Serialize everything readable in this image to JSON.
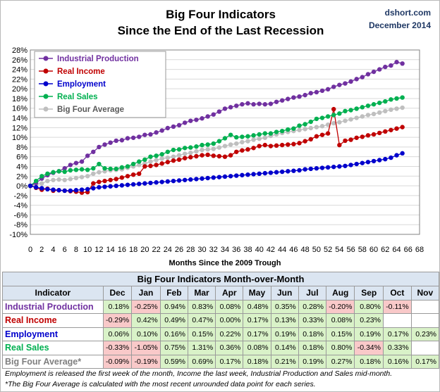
{
  "header": {
    "title_line1": "Big Four Indicators",
    "title_line2": "Since the End of the Last Recession",
    "source_line1": "dshort.com",
    "source_line2": "December 2014"
  },
  "chart_data": {
    "type": "line",
    "xlabel": "Months Since the 2009 Trough",
    "ylabel": "",
    "xlim": [
      0,
      68
    ],
    "ylim": [
      -10,
      28
    ],
    "x_ticks": [
      0,
      2,
      4,
      6,
      8,
      10,
      12,
      14,
      16,
      18,
      20,
      22,
      24,
      26,
      28,
      30,
      32,
      34,
      36,
      38,
      40,
      42,
      44,
      46,
      48,
      50,
      52,
      54,
      56,
      58,
      60,
      62,
      64,
      66,
      68
    ],
    "y_ticks": [
      -10,
      -8,
      -6,
      -4,
      -2,
      0,
      2,
      4,
      6,
      8,
      10,
      12,
      14,
      16,
      18,
      20,
      22,
      24,
      26,
      28
    ],
    "y_tick_suffix": "%",
    "grid": true,
    "legend_position": "top-left",
    "series": [
      {
        "name": "Industrial Production",
        "color": "#7030a0",
        "values": [
          0,
          0.6,
          1.5,
          2.2,
          2.7,
          3.0,
          3.6,
          4.3,
          4.7,
          5.0,
          6.2,
          7.0,
          8.0,
          8.5,
          8.9,
          9.3,
          9.4,
          9.8,
          9.9,
          10.1,
          10.5,
          10.6,
          11.0,
          11.4,
          11.9,
          12.2,
          12.5,
          13.0,
          13.4,
          13.6,
          13.9,
          14.3,
          14.7,
          15.3,
          15.9,
          16.2,
          16.5,
          16.8,
          17.0,
          16.8,
          16.9,
          16.8,
          16.9,
          17.3,
          17.6,
          17.9,
          18.2,
          18.4,
          18.7,
          19.1,
          19.3,
          19.6,
          19.9,
          20.4,
          20.8,
          21.1,
          21.5,
          22.0,
          22.4,
          23.0,
          23.5,
          24.0,
          24.5,
          24.8,
          25.5,
          25.2
        ]
      },
      {
        "name": "Real Income",
        "color": "#c00000",
        "values": [
          0,
          -0.4,
          -0.8,
          -0.6,
          -1.0,
          -0.9,
          -1.0,
          -1.1,
          -1.2,
          -1.4,
          -1.3,
          0.5,
          0.8,
          1.0,
          1.2,
          1.4,
          1.7,
          2.0,
          2.3,
          2.5,
          4.0,
          4.1,
          4.3,
          4.6,
          4.9,
          5.2,
          5.4,
          5.7,
          5.9,
          6.1,
          6.3,
          6.4,
          6.2,
          6.1,
          6.0,
          6.3,
          7.0,
          7.3,
          7.5,
          7.8,
          8.2,
          8.4,
          8.2,
          8.3,
          8.4,
          8.5,
          8.6,
          8.8,
          9.2,
          9.6,
          10.2,
          10.5,
          10.8,
          15.8,
          8.4,
          9.3,
          9.5,
          9.9,
          10.1,
          10.4,
          10.6,
          10.9,
          11.2,
          11.5,
          11.8,
          12.1
        ]
      },
      {
        "name": "Employment",
        "color": "#0000cc",
        "values": [
          0,
          -0.3,
          -0.5,
          -0.7,
          -0.8,
          -0.9,
          -1.0,
          -1.0,
          -0.9,
          -0.8,
          -0.7,
          -0.5,
          -0.3,
          -0.2,
          -0.1,
          0.0,
          0.1,
          0.2,
          0.3,
          0.4,
          0.5,
          0.6,
          0.7,
          0.8,
          0.9,
          1.0,
          1.1,
          1.2,
          1.3,
          1.4,
          1.5,
          1.6,
          1.7,
          1.8,
          1.9,
          2.0,
          2.1,
          2.2,
          2.3,
          2.4,
          2.5,
          2.6,
          2.7,
          2.8,
          2.9,
          3.0,
          3.1,
          3.2,
          3.4,
          3.5,
          3.6,
          3.7,
          3.8,
          3.9,
          4.0,
          4.1,
          4.3,
          4.5,
          4.7,
          4.9,
          5.1,
          5.3,
          5.5,
          5.8,
          6.3,
          6.7
        ]
      },
      {
        "name": "Real Sales",
        "color": "#00b050",
        "values": [
          0,
          1.0,
          2.0,
          2.5,
          2.8,
          3.0,
          2.9,
          3.2,
          3.3,
          3.4,
          3.3,
          3.6,
          4.5,
          3.6,
          3.5,
          3.5,
          3.8,
          4.0,
          4.5,
          5.0,
          5.4,
          6.0,
          6.2,
          6.5,
          7.0,
          7.4,
          7.5,
          7.8,
          7.9,
          8.1,
          8.4,
          8.5,
          8.7,
          9.2,
          9.8,
          10.5,
          10.0,
          10.1,
          10.2,
          10.4,
          10.6,
          10.8,
          10.8,
          11.1,
          11.3,
          11.6,
          11.8,
          12.4,
          12.7,
          13.2,
          13.8,
          14.0,
          14.3,
          14.6,
          14.9,
          15.4,
          15.6,
          15.9,
          16.2,
          16.5,
          16.8,
          17.1,
          17.4,
          17.8,
          18.0,
          18.2
        ]
      },
      {
        "name": "Big Four Average",
        "color": "#bfbfbf",
        "values": [
          0,
          0.3,
          0.5,
          1.0,
          1.2,
          1.3,
          1.2,
          1.4,
          1.6,
          1.8,
          2.0,
          2.5,
          2.8,
          3.0,
          3.2,
          3.3,
          3.4,
          3.7,
          4.0,
          4.3,
          4.6,
          5.0,
          5.3,
          5.6,
          5.8,
          6.0,
          6.3,
          6.6,
          6.8,
          7.1,
          7.4,
          7.5,
          7.6,
          7.9,
          8.2,
          8.5,
          8.7,
          9.0,
          9.2,
          9.5,
          9.7,
          9.9,
          10.3,
          10.6,
          10.9,
          11.1,
          11.3,
          11.5,
          11.7,
          11.9,
          12.1,
          12.3,
          12.6,
          12.9,
          13.1,
          13.4,
          13.7,
          14.0,
          14.3,
          14.6,
          14.8,
          15.1,
          15.4,
          15.7,
          15.9,
          16.1
        ]
      }
    ]
  },
  "table": {
    "caption": "Big Four Indicators Month-over-Month",
    "indicator_header": "Indicator",
    "months": [
      "Dec",
      "Jan",
      "Feb",
      "Mar",
      "Apr",
      "May",
      "Jun",
      "Jul",
      "Aug",
      "Sep",
      "Oct",
      "Nov"
    ],
    "rows": [
      {
        "name": "Industrial Production",
        "color": "#7030a0",
        "values": [
          "0.18%",
          "-0.25%",
          "0.94%",
          "0.83%",
          "0.08%",
          "0.48%",
          "0.35%",
          "0.28%",
          "-0.20%",
          "0.80%",
          "-0.11%",
          ""
        ]
      },
      {
        "name": "Real Income",
        "color": "#c00000",
        "values": [
          "-0.29%",
          "0.42%",
          "0.49%",
          "0.47%",
          "0.00%",
          "0.17%",
          "0.13%",
          "0.33%",
          "0.08%",
          "0.23%",
          "",
          ""
        ]
      },
      {
        "name": "Employment",
        "color": "#0000cc",
        "values": [
          "0.06%",
          "0.10%",
          "0.16%",
          "0.15%",
          "0.22%",
          "0.17%",
          "0.19%",
          "0.18%",
          "0.15%",
          "0.19%",
          "0.17%",
          "0.23%"
        ]
      },
      {
        "name": "Real Sales",
        "color": "#00b050",
        "values": [
          "-0.33%",
          "-1.05%",
          "0.75%",
          "1.31%",
          "0.36%",
          "0.08%",
          "0.14%",
          "0.18%",
          "0.80%",
          "-0.34%",
          "0.33%",
          ""
        ]
      },
      {
        "name": "Big Four Average*",
        "color": "#7f7f7f",
        "values": [
          "-0.09%",
          "-0.19%",
          "0.59%",
          "0.69%",
          "0.17%",
          "0.18%",
          "0.21%",
          "0.19%",
          "0.27%",
          "0.18%",
          "0.16%",
          "0.17%"
        ]
      }
    ]
  },
  "footnote": {
    "line1": "Employment is released the first week of the month, Income the last week, Industrial Production and Sales mid-month.",
    "line2": "*The Big Four Average is calculated with the most recent  unrounded data point for each series."
  },
  "colors": {
    "plot_background": "#ffffff",
    "gridline": "#d9d9d9",
    "table_header_bg": "#dbe5f1",
    "positive_bg": "#d9f2c8",
    "negative_bg": "#f9c9c9"
  }
}
